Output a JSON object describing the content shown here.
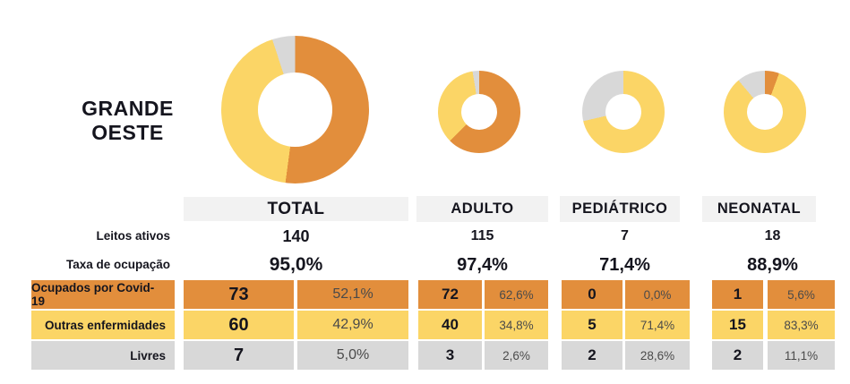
{
  "region": {
    "title_line1": "GRANDE",
    "title_line2": "OESTE"
  },
  "row_labels": {
    "active_beds": "Leitos ativos",
    "occupancy_rate": "Taxa de ocupação",
    "covid": "Ocupados por Covid-19",
    "other": "Outras enfermidades",
    "free": "Livres"
  },
  "colors": {
    "covid": "#E28E3C",
    "other": "#FBD566",
    "free": "#D8D8D8",
    "header": "#F2F2F2"
  },
  "columns": [
    {
      "label": "TOTAL",
      "active_beds": "140",
      "occupancy_rate": "95,0%",
      "covid_count": "73",
      "covid_pct": "52,1%",
      "other_count": "60",
      "other_pct": "42,9%",
      "free_count": "7",
      "free_pct": "5,0%"
    },
    {
      "label": "ADULTO",
      "active_beds": "115",
      "occupancy_rate": "97,4%",
      "covid_count": "72",
      "covid_pct": "62,6%",
      "other_count": "40",
      "other_pct": "34,8%",
      "free_count": "3",
      "free_pct": "2,6%"
    },
    {
      "label": "PEDIÁTRICO",
      "active_beds": "7",
      "occupancy_rate": "71,4%",
      "covid_count": "0",
      "covid_pct": "0,0%",
      "other_count": "5",
      "other_pct": "71,4%",
      "free_count": "2",
      "free_pct": "28,6%"
    },
    {
      "label": "NEONATAL",
      "active_beds": "18",
      "occupancy_rate": "88,9%",
      "covid_count": "1",
      "covid_pct": "5,6%",
      "other_count": "15",
      "other_pct": "83,3%",
      "free_count": "2",
      "free_pct": "11,1%"
    }
  ],
  "chart_data": [
    {
      "type": "pie",
      "title": "TOTAL",
      "donut": true,
      "legend_position": "none",
      "categories": [
        "Ocupados por Covid-19",
        "Outras enfermidades",
        "Livres"
      ],
      "values": [
        52.1,
        42.9,
        5.0
      ],
      "counts": [
        73,
        60,
        7
      ],
      "colors": [
        "#E28E3C",
        "#FBD566",
        "#D8D8D8"
      ]
    },
    {
      "type": "pie",
      "title": "ADULTO",
      "donut": true,
      "legend_position": "none",
      "categories": [
        "Ocupados por Covid-19",
        "Outras enfermidades",
        "Livres"
      ],
      "values": [
        62.6,
        34.8,
        2.6
      ],
      "counts": [
        72,
        40,
        3
      ],
      "colors": [
        "#E28E3C",
        "#FBD566",
        "#D8D8D8"
      ]
    },
    {
      "type": "pie",
      "title": "PEDIÁTRICO",
      "donut": true,
      "legend_position": "none",
      "categories": [
        "Ocupados por Covid-19",
        "Outras enfermidades",
        "Livres"
      ],
      "values": [
        0.0,
        71.4,
        28.6
      ],
      "counts": [
        0,
        5,
        2
      ],
      "colors": [
        "#E28E3C",
        "#FBD566",
        "#D8D8D8"
      ]
    },
    {
      "type": "pie",
      "title": "NEONATAL",
      "donut": true,
      "legend_position": "none",
      "categories": [
        "Ocupados por Covid-19",
        "Outras enfermidades",
        "Livres"
      ],
      "values": [
        5.6,
        83.3,
        11.1
      ],
      "counts": [
        1,
        15,
        2
      ],
      "colors": [
        "#E28E3C",
        "#FBD566",
        "#D8D8D8"
      ]
    }
  ]
}
